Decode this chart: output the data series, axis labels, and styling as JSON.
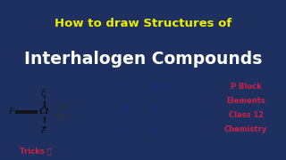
{
  "bg_top": "#1e3060",
  "bg_subtitle": "#0a0a0a",
  "bg_body": "#ffffff",
  "title_text": "How to draw Structures of",
  "title_color": "#eeee00",
  "subtitle_text": "Interhalogen Compounds",
  "subtitle_color": "#ffffff",
  "body_bg": "#ffffff",
  "pblock_lines": [
    "P Block",
    "Elements",
    "Class 12",
    "Chemistry"
  ],
  "pblock_color": "#cc2244",
  "tricks_color": "#cc2244",
  "formula_color": "#1a3080",
  "bond_color": "#111111",
  "lp_color": "#333333",
  "title_fontsize": 9.5,
  "subtitle_fontsize": 13.5,
  "formula_fontsize": 7.5,
  "pblock_fontsize": 6.0
}
